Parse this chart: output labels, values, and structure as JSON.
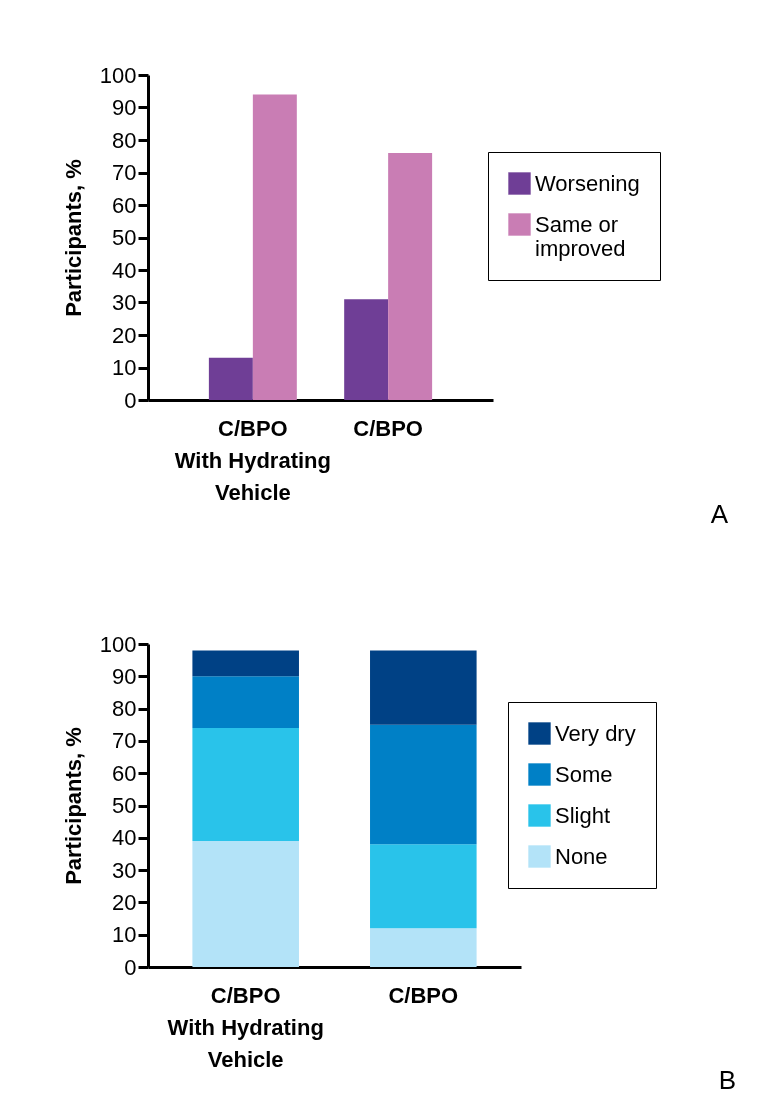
{
  "chart_data": [
    {
      "type": "bar",
      "categories": [
        "C/BPO\nWith Hydrating\nVehicle",
        "C/BPO"
      ],
      "ylabel": "Participants, %",
      "ylim": [
        0,
        100
      ],
      "yticks": [
        0,
        10,
        20,
        30,
        40,
        50,
        60,
        70,
        80,
        90,
        100
      ],
      "grid": false,
      "legend": "right",
      "annotations": [
        "A"
      ],
      "series": [
        {
          "name": "Worsening",
          "color": "#6f3e96",
          "values": [
            13,
            31
          ]
        },
        {
          "name": "Same or\nimproved",
          "color": "#c97db4",
          "values": [
            94,
            76
          ]
        }
      ]
    },
    {
      "type": "bar",
      "stacked": true,
      "categories": [
        "C/BPO\nWith Hydrating\nVehicle",
        "C/BPO"
      ],
      "ylabel": "Participants, %",
      "ylim": [
        0,
        100
      ],
      "yticks": [
        0,
        10,
        20,
        30,
        40,
        50,
        60,
        70,
        80,
        90,
        100
      ],
      "grid": false,
      "legend": "right",
      "annotations": [
        "B"
      ],
      "series": [
        {
          "name": "None",
          "color": "#b3e3f8",
          "values": [
            39,
            12
          ]
        },
        {
          "name": "Slight",
          "color": "#29c3ea",
          "values": [
            35,
            26
          ]
        },
        {
          "name": "Some",
          "color": "#0080c6",
          "values": [
            16,
            37
          ]
        },
        {
          "name": "Very dry",
          "color": "#004185",
          "values": [
            8,
            23
          ]
        }
      ]
    }
  ]
}
